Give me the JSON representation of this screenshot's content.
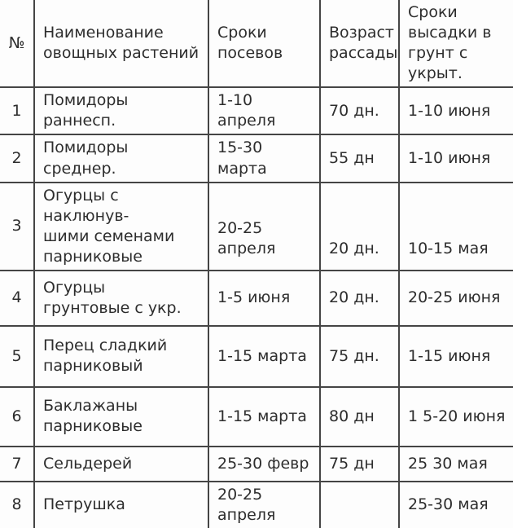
{
  "colors": {
    "border": "#454545",
    "text": "#2d2d2d",
    "background": "#fdfdfd"
  },
  "table": {
    "header": {
      "number": "№",
      "name": "Наименование\nовощных растений",
      "sowing": "Сроки\nпосевов",
      "age": "Возраст\nрассады",
      "planting": "Сроки\nвысадки в\nгрунт с укрыт."
    },
    "rows": [
      {
        "num": "1",
        "name": "Помидоры раннесп.",
        "sowing": "1-10 апреля",
        "age": "70 дн.",
        "planting": "1-10 июня"
      },
      {
        "num": "2",
        "name": "Помидоры среднер.",
        "sowing": "15-30 марта",
        "age": "55 дн",
        "planting": "1-10 июня"
      },
      {
        "num": "3",
        "name": "Огурцы с наклюнув-\nшими семенами\nпарниковые",
        "sowing": "20-25 апреля",
        "age": "20 дн.",
        "planting": "10-15 мая"
      },
      {
        "num": "4",
        "name": "Огурцы\nгрунтовые с укр.",
        "sowing": "1-5 июня",
        "age": "20 дн.",
        "planting": "20-25 июня"
      },
      {
        "num": "5",
        "name": "Перец сладкий\nпарниковый",
        "sowing": "1-15 марта",
        "age": "75 дн.",
        "planting": "1-15 июня"
      },
      {
        "num": "6",
        "name": "Баклажаны\nпарниковые",
        "sowing": "1-15 марта",
        "age": "80 дн",
        "planting": "1 5-20 июня"
      },
      {
        "num": "7",
        "name": "Сельдерей",
        "sowing": "25-30 февр",
        "age": "75 дн",
        "planting": "25 30 мая"
      },
      {
        "num": "8",
        "name": "Петрушка",
        "sowing": "20-25 апреля",
        "age": "",
        "planting": "25-30 мая"
      }
    ]
  }
}
